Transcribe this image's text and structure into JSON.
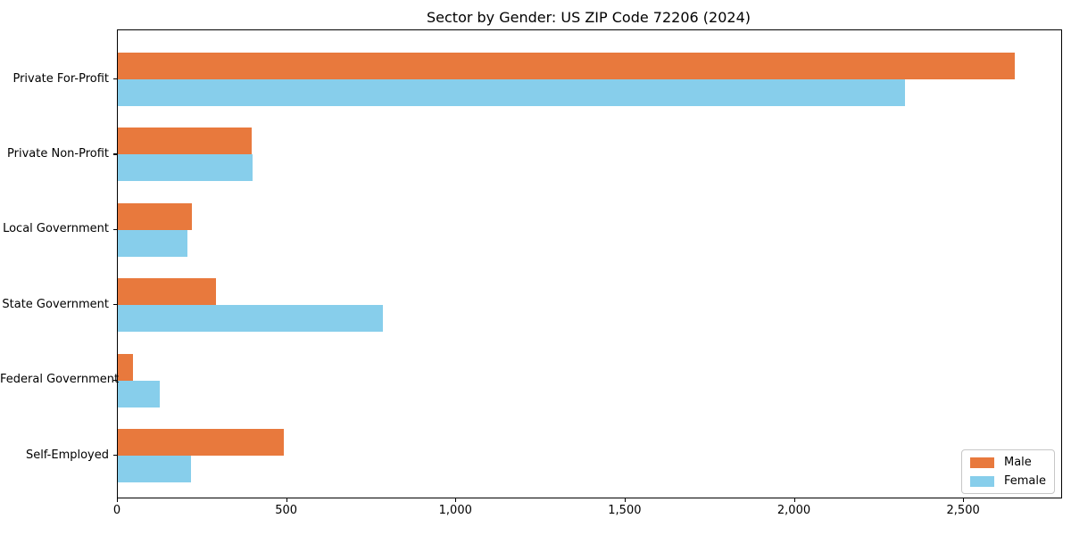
{
  "title": "Sector by Gender: US ZIP Code 72206 (2024)",
  "chart_data": {
    "type": "bar",
    "orientation": "horizontal",
    "title": "Sector by Gender: US ZIP Code 72206 (2024)",
    "xlabel": "",
    "ylabel": "",
    "categories": [
      "Private For-Profit",
      "Private Non-Profit",
      "Local Government",
      "State Government",
      "Federal Government",
      "Self-Employed"
    ],
    "series": [
      {
        "name": "Male",
        "color": "#E8793D",
        "values": [
          2650,
          395,
          218,
          290,
          46,
          490
        ]
      },
      {
        "name": "Female",
        "color": "#87CEEB",
        "values": [
          2325,
          398,
          205,
          782,
          125,
          215
        ]
      }
    ],
    "xlim": [
      0,
      2787
    ],
    "xticks": [
      {
        "value": 0,
        "label": "0"
      },
      {
        "value": 500,
        "label": "500"
      },
      {
        "value": 1000,
        "label": "1,000"
      },
      {
        "value": 1500,
        "label": "1,500"
      },
      {
        "value": 2000,
        "label": "2,000"
      },
      {
        "value": 2500,
        "label": "2,500"
      }
    ],
    "grid": false,
    "legend_position": "lower right"
  }
}
